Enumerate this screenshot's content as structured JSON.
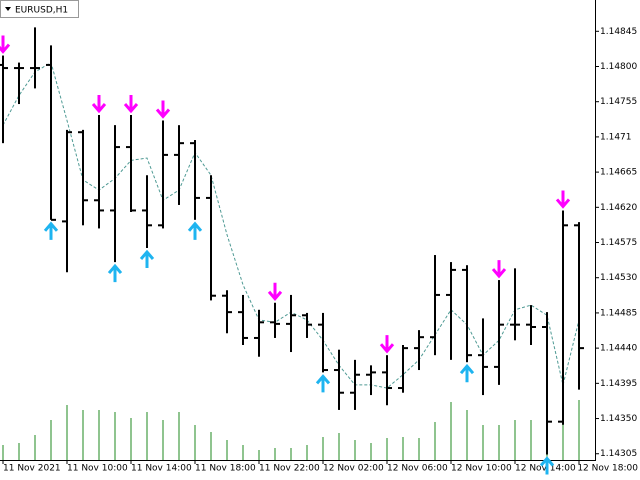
{
  "chart_data": {
    "type": "ohlc",
    "title": "EURUSD,H1",
    "categories": [
      "11 Nov 2021",
      null,
      null,
      null,
      "11 Nov 10:00",
      null,
      null,
      null,
      "11 Nov 14:00",
      null,
      null,
      null,
      "11 Nov 18:00",
      null,
      null,
      null,
      "11 Nov 22:00",
      null,
      null,
      null,
      "12 Nov 02:00",
      null,
      null,
      null,
      "12 Nov 06:00",
      null,
      null,
      null,
      "12 Nov 10:00",
      null,
      null,
      null,
      "12 Nov 14:00",
      null,
      null,
      null,
      "12 Nov 18:00"
    ],
    "open": [
      1.14802,
      1.14798,
      1.14798,
      1.14802,
      1.14602,
      1.14716,
      1.14629,
      1.14616,
      1.14697,
      1.14616,
      1.14597,
      1.14687,
      1.14702,
      1.14632,
      1.14507,
      1.14486,
      1.14453,
      1.14473,
      1.14471,
      1.14482,
      1.1447,
      1.14412,
      1.14383,
      1.14406,
      1.14409,
      1.14389,
      1.1444,
      1.14454,
      1.14508,
      1.1454,
      1.14431,
      1.14416,
      1.1447,
      1.1447,
      1.14467,
      1.14346,
      1.14597
    ],
    "high": [
      1.14814,
      1.14805,
      1.1485,
      1.14827,
      1.14719,
      1.14719,
      1.14738,
      1.14725,
      1.14738,
      1.14661,
      1.14731,
      1.14725,
      1.14706,
      1.14661,
      1.14514,
      1.14508,
      1.14489,
      1.14498,
      1.14508,
      1.14485,
      1.14485,
      1.14438,
      1.14425,
      1.14418,
      1.14431,
      1.14444,
      1.14463,
      1.14559,
      1.1455,
      1.14546,
      1.14478,
      1.14527,
      1.14542,
      1.14495,
      1.14486,
      1.14616,
      1.14601
    ],
    "low": [
      1.14702,
      1.14752,
      1.14772,
      1.14604,
      1.14537,
      1.14597,
      1.14593,
      1.1455,
      1.14614,
      1.14568,
      1.14593,
      1.14623,
      1.14604,
      1.14501,
      1.14459,
      1.14444,
      1.14429,
      1.14453,
      1.14435,
      1.14453,
      1.14409,
      1.14361,
      1.14361,
      1.1438,
      1.14367,
      1.14383,
      1.14412,
      1.14431,
      1.14425,
      1.14422,
      1.1438,
      1.14393,
      1.1445,
      1.14444,
      1.14304,
      1.14342,
      1.14387
    ],
    "close": [
      1.14798,
      1.14798,
      1.14798,
      1.14604,
      1.14716,
      1.14629,
      1.14616,
      1.14697,
      1.14616,
      1.14597,
      1.14687,
      1.14702,
      1.14632,
      1.14507,
      1.14486,
      1.14453,
      1.14473,
      1.14471,
      1.14482,
      1.1447,
      1.14412,
      1.14383,
      1.14406,
      1.14409,
      1.14389,
      1.1444,
      1.14454,
      1.14508,
      1.1454,
      1.14431,
      1.14416,
      1.1447,
      1.1447,
      1.14467,
      1.14346,
      1.14597,
      1.1444
    ],
    "bar_color": "#000000",
    "ma": {
      "color": "#4f9a94",
      "values": [
        1.14725,
        1.14763,
        1.14793,
        1.14805,
        1.14731,
        1.14655,
        1.14642,
        1.14657,
        1.1468,
        1.14683,
        1.14629,
        1.14642,
        1.1469,
        1.14661,
        1.14585,
        1.14521,
        1.14476,
        1.14473,
        1.14486,
        1.14476,
        1.1445,
        1.14418,
        1.14393,
        1.14393,
        1.14389,
        1.14406,
        1.14425,
        1.14457,
        1.14489,
        1.1447,
        1.14431,
        1.1445,
        1.14489,
        1.14495,
        1.14482,
        1.14393,
        1.14476
      ]
    },
    "volume": {
      "color": "#1f8a1f",
      "values": [
        15,
        17,
        25,
        40,
        55,
        50,
        50,
        48,
        42,
        48,
        40,
        48,
        35,
        28,
        20,
        15,
        10,
        12,
        12,
        15,
        23,
        27,
        20,
        17,
        22,
        23,
        22,
        38,
        58,
        50,
        35,
        35,
        40,
        40,
        65,
        52,
        60
      ]
    },
    "sell_signals": {
      "color": "#ff00ff",
      "indices": [
        0,
        6,
        8,
        10,
        17,
        24,
        31,
        35
      ]
    },
    "buy_signals": {
      "color": "#1eb4f0",
      "indices": [
        3,
        7,
        9,
        12,
        20,
        29,
        34
      ]
    },
    "ylim": [
      1.14297,
      1.14885
    ],
    "yticks": [
      1.14845,
      {
        "value": 1.148,
        "label": "1.14800"
      },
      1.14755,
      1.1471,
      1.14665,
      {
        "value": 1.1462,
        "label": "1.14620"
      },
      1.14575,
      {
        "value": 1.1453,
        "label": "1.14530"
      },
      1.14485,
      {
        "value": 1.1444,
        "label": "1.14440"
      },
      1.14395,
      {
        "value": 1.1435,
        "label": "1.14350"
      },
      1.14305
    ]
  }
}
